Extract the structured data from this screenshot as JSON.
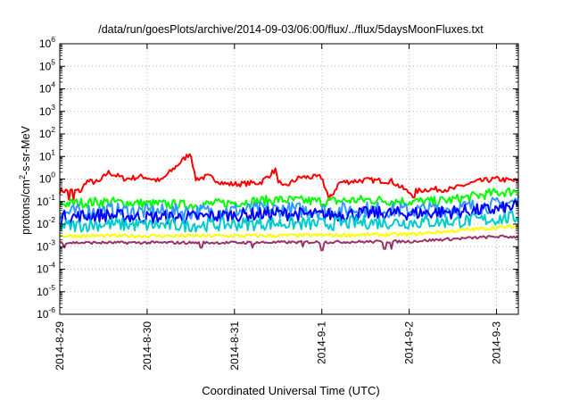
{
  "chart_data": {
    "type": "line",
    "title": "/data/run/goesPlots/archive/2014-09-03/06:00/flux/../flux/5daysMoonFluxes.txt",
    "xlabel": "Coordinated Universal Time (UTC)",
    "ylabel_parts": [
      "protons/cm",
      "2",
      "-s-sr-MeV"
    ],
    "y_scale": "log",
    "ylim": [
      1e-06,
      1000000.0
    ],
    "y_ticks": [
      {
        "value": 1e-06,
        "base": "10",
        "exp": "-6"
      },
      {
        "value": 1e-05,
        "base": "10",
        "exp": "-5"
      },
      {
        "value": 0.0001,
        "base": "10",
        "exp": "-4"
      },
      {
        "value": 0.001,
        "base": "10",
        "exp": "-3"
      },
      {
        "value": 0.01,
        "base": "10",
        "exp": "-2"
      },
      {
        "value": 0.1,
        "base": "10",
        "exp": "-1"
      },
      {
        "value": 1,
        "base": "10",
        "exp": "0"
      },
      {
        "value": 10,
        "base": "10",
        "exp": "1"
      },
      {
        "value": 100,
        "base": "10",
        "exp": "2"
      },
      {
        "value": 1000,
        "base": "10",
        "exp": "3"
      },
      {
        "value": 10000,
        "base": "10",
        "exp": "4"
      },
      {
        "value": 100000,
        "base": "10",
        "exp": "5"
      },
      {
        "value": 1000000,
        "base": "10",
        "exp": "6"
      }
    ],
    "xlim": [
      0,
      5.25
    ],
    "x_unit": "days from 2014-8-29 00:00 UTC",
    "x_ticks": [
      {
        "value": 0,
        "label": "2014-8-29"
      },
      {
        "value": 1,
        "label": "2014-8-30"
      },
      {
        "value": 2,
        "label": "2014-8-31"
      },
      {
        "value": 3,
        "label": "2014-9-1"
      },
      {
        "value": 4,
        "label": "2014-9-2"
      },
      {
        "value": 5,
        "label": "2014-9-3"
      }
    ],
    "grid": true,
    "series": [
      {
        "color": "#ff0000",
        "base": [
          [
            0,
            0.3
          ],
          [
            0.25,
            0.3
          ],
          [
            0.3,
            0.8
          ],
          [
            0.45,
            0.7
          ],
          [
            0.55,
            2.0
          ],
          [
            0.75,
            1.0
          ],
          [
            0.95,
            1.3
          ],
          [
            1.15,
            0.8
          ],
          [
            1.5,
            15
          ],
          [
            1.55,
            1.0
          ],
          [
            1.7,
            1.3
          ],
          [
            1.9,
            0.6
          ],
          [
            2.05,
            0.6
          ],
          [
            2.3,
            0.7
          ],
          [
            2.45,
            2.2
          ],
          [
            2.55,
            0.4
          ],
          [
            2.75,
            1.2
          ],
          [
            3.0,
            1.2
          ],
          [
            3.05,
            0.3
          ],
          [
            3.1,
            0.15
          ],
          [
            3.2,
            0.7
          ],
          [
            3.5,
            0.9
          ],
          [
            3.8,
            0.8
          ],
          [
            4.0,
            0.25
          ],
          [
            4.2,
            0.35
          ],
          [
            4.5,
            0.35
          ],
          [
            4.6,
            0.5
          ],
          [
            4.8,
            0.8
          ],
          [
            5.0,
            1.0
          ],
          [
            5.25,
            0.8
          ]
        ],
        "noise": 0.12,
        "spikes": [
          [
            0.1,
            0.12
          ],
          [
            0.16,
            0.12
          ],
          [
            2.47,
            3.0
          ],
          [
            3.08,
            0.12
          ],
          [
            4.05,
            0.15
          ]
        ]
      },
      {
        "color": "#00ff00",
        "base": [
          [
            0,
            0.08
          ],
          [
            0.3,
            0.09
          ],
          [
            0.5,
            0.1
          ],
          [
            1.0,
            0.08
          ],
          [
            1.5,
            0.07
          ],
          [
            2.0,
            0.09
          ],
          [
            2.5,
            0.12
          ],
          [
            3.0,
            0.1
          ],
          [
            3.5,
            0.12
          ],
          [
            4.0,
            0.1
          ],
          [
            4.3,
            0.1
          ],
          [
            4.5,
            0.12
          ],
          [
            5.0,
            0.25
          ],
          [
            5.25,
            0.3
          ]
        ],
        "noise": 0.22,
        "spikes": []
      },
      {
        "color": "#3399ff",
        "base": [
          [
            0,
            0.03
          ],
          [
            0.5,
            0.04
          ],
          [
            1.0,
            0.035
          ],
          [
            1.5,
            0.035
          ],
          [
            2.0,
            0.04
          ],
          [
            2.5,
            0.045
          ],
          [
            3.0,
            0.04
          ],
          [
            3.5,
            0.045
          ],
          [
            4.0,
            0.04
          ],
          [
            4.5,
            0.05
          ],
          [
            5.0,
            0.07
          ],
          [
            5.25,
            0.1
          ]
        ],
        "noise": 0.35,
        "spikes": []
      },
      {
        "color": "#0000ff",
        "base": [
          [
            0,
            0.02
          ],
          [
            0.5,
            0.025
          ],
          [
            1.0,
            0.02
          ],
          [
            1.5,
            0.02
          ],
          [
            2.0,
            0.025
          ],
          [
            2.5,
            0.03
          ],
          [
            3.0,
            0.025
          ],
          [
            3.5,
            0.03
          ],
          [
            4.0,
            0.03
          ],
          [
            4.5,
            0.035
          ],
          [
            5.0,
            0.045
          ],
          [
            5.25,
            0.06
          ]
        ],
        "noise": 0.3,
        "spikes": []
      },
      {
        "color": "#00cccc",
        "base": [
          [
            0,
            0.008
          ],
          [
            0.5,
            0.01
          ],
          [
            1.0,
            0.009
          ],
          [
            1.5,
            0.009
          ],
          [
            2.0,
            0.01
          ],
          [
            2.5,
            0.011
          ],
          [
            3.0,
            0.01
          ],
          [
            3.5,
            0.012
          ],
          [
            4.0,
            0.012
          ],
          [
            4.5,
            0.013
          ],
          [
            5.0,
            0.017
          ],
          [
            5.25,
            0.02
          ]
        ],
        "noise": 0.3,
        "spikes": []
      },
      {
        "color": "#ffff00",
        "base": [
          [
            0,
            0.003
          ],
          [
            1.0,
            0.003
          ],
          [
            2.0,
            0.003
          ],
          [
            3.0,
            0.0032
          ],
          [
            4.0,
            0.0035
          ],
          [
            4.5,
            0.005
          ],
          [
            5.0,
            0.007
          ],
          [
            5.25,
            0.008
          ]
        ],
        "noise": 0.08,
        "spikes": []
      },
      {
        "color": "#993366",
        "base": [
          [
            0,
            0.0015
          ],
          [
            1.0,
            0.0015
          ],
          [
            2.0,
            0.0015
          ],
          [
            3.0,
            0.0016
          ],
          [
            4.0,
            0.0017
          ],
          [
            4.5,
            0.0022
          ],
          [
            5.0,
            0.0028
          ],
          [
            5.25,
            0.0027
          ]
        ],
        "noise": 0.06,
        "spikes": [
          [
            0.05,
            0.0009
          ],
          [
            1.62,
            0.0009
          ],
          [
            2.2,
            0.0009
          ],
          [
            2.78,
            0.001
          ],
          [
            3.0,
            0.0007
          ],
          [
            3.72,
            0.0008
          ],
          [
            3.8,
            0.0008
          ]
        ]
      }
    ]
  }
}
